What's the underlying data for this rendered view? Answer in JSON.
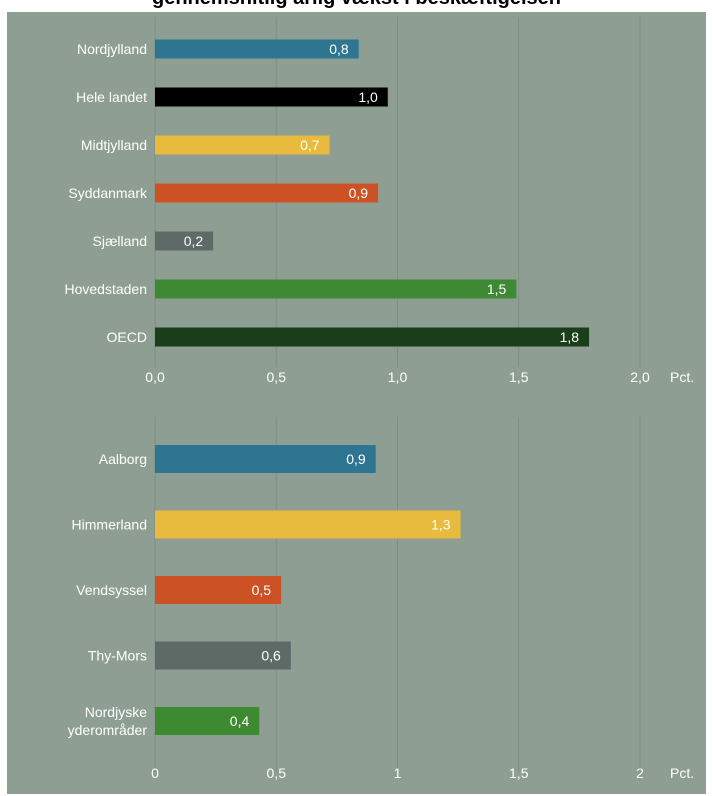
{
  "title": "gennemsnitlig årlig vækst i beskæftigelsen",
  "chart_data": [
    {
      "type": "bar",
      "orientation": "horizontal",
      "categories": [
        "Nordjylland",
        "Hele landet",
        "Midtjylland",
        "Syddanmark",
        "Sjælland",
        "Hovedstaden",
        "OECD"
      ],
      "values": [
        0.84,
        0.96,
        0.72,
        0.92,
        0.24,
        1.49,
        1.79
      ],
      "value_labels": [
        "0,8",
        "1,0",
        "0,7",
        "0,9",
        "0,2",
        "1,5",
        "1,8"
      ],
      "colors": [
        "#2e7591",
        "#000000",
        "#e8ba3d",
        "#cc5226",
        "#5e6a67",
        "#3d8a33",
        "#1a3d1a"
      ],
      "label_colors": [
        "#ffffff",
        "#ffffff",
        "#ffffff",
        "#ffffff",
        "#ffffff",
        "#ffffff",
        "#ffffff"
      ],
      "xlim": [
        0,
        2
      ],
      "ticks": [
        0,
        0.5,
        1,
        1.5,
        2
      ],
      "tick_labels": [
        "0,0",
        "0,5",
        "1,0",
        "1,5",
        "2,0"
      ],
      "unit_label": "Pct.",
      "grid": true
    },
    {
      "type": "bar",
      "orientation": "horizontal",
      "categories": [
        "Aalborg",
        "Himmerland",
        "Vendsyssel",
        "Thy-Mors",
        "Nordjyske yderområder"
      ],
      "category_lines": [
        [
          "Aalborg"
        ],
        [
          "Himmerland"
        ],
        [
          "Vendsyssel"
        ],
        [
          "Thy-Mors"
        ],
        [
          "Nordjyske",
          "yderområder"
        ]
      ],
      "values": [
        0.91,
        1.26,
        0.52,
        0.56,
        0.43
      ],
      "value_labels": [
        "0,9",
        "1,3",
        "0,5",
        "0,6",
        "0,4"
      ],
      "colors": [
        "#2e7591",
        "#e8ba3d",
        "#cc5226",
        "#5e6a67",
        "#3d8a33"
      ],
      "label_colors": [
        "#ffffff",
        "#ffffff",
        "#ffffff",
        "#ffffff",
        "#ffffff"
      ],
      "xlim": [
        0,
        2
      ],
      "ticks": [
        0,
        0.5,
        1,
        1.5,
        2
      ],
      "tick_labels": [
        "0",
        "0,5",
        "1",
        "1,5",
        "2"
      ],
      "unit_label": "Pct.",
      "grid": true
    }
  ]
}
